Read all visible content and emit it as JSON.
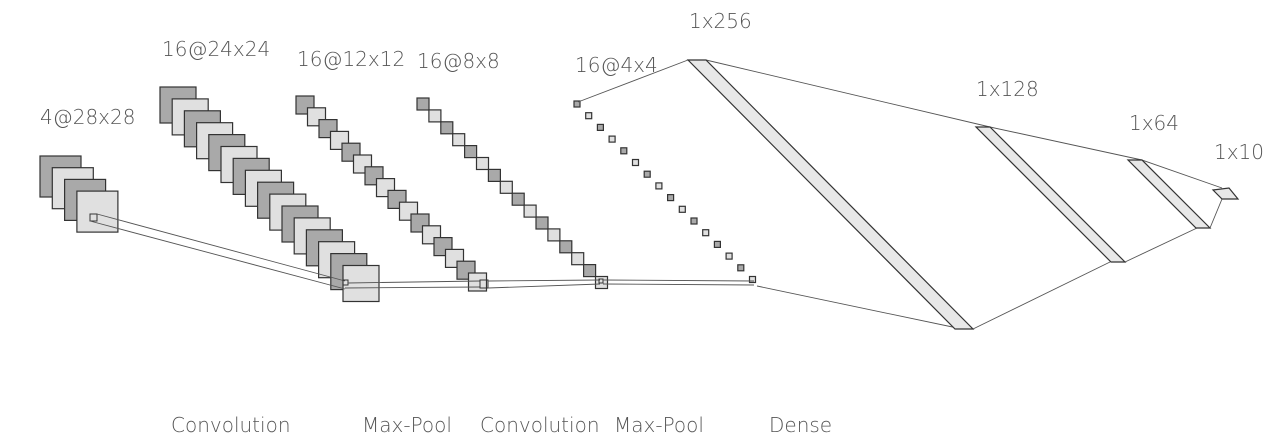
{
  "colors": {
    "dark": "#a9a9a9",
    "light": "#e0e0e0",
    "edge": "#333333",
    "line": "#555555"
  },
  "layers": [
    {
      "id": "input",
      "label": "4@28x28"
    },
    {
      "id": "conv1",
      "label": "16@24x24"
    },
    {
      "id": "pool1",
      "label": "16@12x12"
    },
    {
      "id": "conv2",
      "label": "16@8x8"
    },
    {
      "id": "pool2",
      "label": "16@4x4"
    },
    {
      "id": "dense1",
      "label": "1x256"
    },
    {
      "id": "dense2",
      "label": "1x128"
    },
    {
      "id": "dense3",
      "label": "1x64"
    },
    {
      "id": "output",
      "label": "1x10"
    }
  ],
  "operations": [
    {
      "id": "op-conv1",
      "label": "Convolution"
    },
    {
      "id": "op-pool1",
      "label": "Max-Pool"
    },
    {
      "id": "op-conv2",
      "label": "Convolution"
    },
    {
      "id": "op-pool2",
      "label": "Max-Pool"
    },
    {
      "id": "op-dense",
      "label": "Dense"
    }
  ]
}
